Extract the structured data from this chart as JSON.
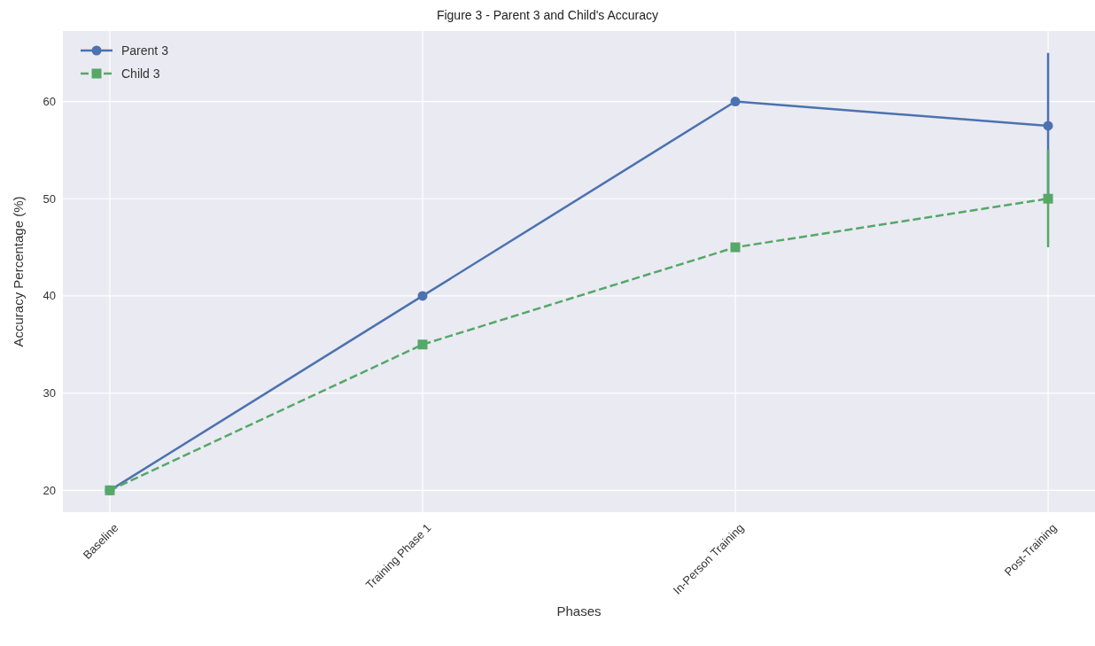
{
  "chart_data": {
    "type": "line",
    "title": "Figure 3 - Parent 3 and Child's Accuracy",
    "xlabel": "Phases",
    "ylabel": "Accuracy Percentage (%)",
    "categories": [
      "Baseline",
      "Training Phase 1",
      "In-Person Training",
      "Post-Training"
    ],
    "series": [
      {
        "name": "Parent 3",
        "color": "#4c72b0",
        "values": [
          20,
          40,
          60,
          57.5
        ],
        "errors": [
          null,
          null,
          null,
          7.5
        ],
        "marker": "circle",
        "line_style": "solid"
      },
      {
        "name": "Child 3",
        "color": "#55a868",
        "values": [
          20,
          35,
          45,
          50
        ],
        "errors": [
          null,
          null,
          null,
          5
        ],
        "marker": "square",
        "line_style": "dashed"
      }
    ],
    "ylim": [
      17.75,
      67.25
    ],
    "yticks": [
      20,
      30,
      40,
      50,
      60
    ],
    "grid": true,
    "legend": "top left"
  }
}
